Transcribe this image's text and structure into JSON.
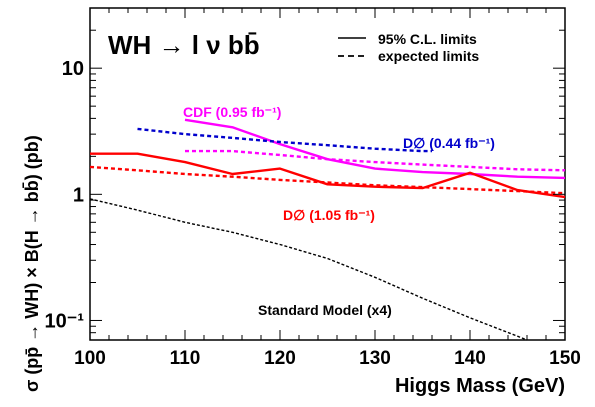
{
  "chart_data": {
    "type": "line",
    "title": "WH → l ν bb̄",
    "xlabel": "Higgs Mass (GeV)",
    "ylabel": "σ (pp̄ → WH) × B(H → bb̄) (pb)",
    "xlim": [
      100,
      150
    ],
    "ylim": [
      0.07,
      30
    ],
    "yscale": "log",
    "x_ticks": [
      "100",
      "110",
      "120",
      "130",
      "140",
      "150"
    ],
    "y_ticks": [
      {
        "value": 0.1,
        "label": "10⁻¹"
      },
      {
        "value": 1,
        "label": "1"
      },
      {
        "value": 10,
        "label": "10"
      }
    ],
    "legend": {
      "position": "top-right",
      "items": [
        {
          "label": "95% C.L. limits",
          "dash": "solid"
        },
        {
          "label": "expected limits",
          "dash": "dashed"
        }
      ]
    },
    "series": [
      {
        "name": "CDF (0.95 fb⁻¹)",
        "color": "#ff00ff",
        "dash": "solid",
        "x": [
          110,
          115,
          120,
          125,
          130,
          135,
          140,
          145,
          150
        ],
        "y": [
          3.9,
          3.4,
          2.5,
          1.9,
          1.6,
          1.5,
          1.45,
          1.38,
          1.35
        ]
      },
      {
        "color": "#ff00ff",
        "dash": "dotted",
        "x": [
          110,
          115,
          120,
          125,
          130,
          135,
          140,
          145,
          150
        ],
        "y": [
          2.2,
          2.2,
          2.05,
          1.9,
          1.8,
          1.72,
          1.65,
          1.58,
          1.55
        ]
      },
      {
        "name": "D∅ (0.44 fb⁻¹)",
        "color": "#0000cc",
        "dash": "dotted",
        "x": [
          105,
          110,
          115,
          120,
          125,
          130,
          135,
          136
        ],
        "y": [
          3.3,
          3.0,
          2.8,
          2.6,
          2.45,
          2.3,
          2.2,
          2.2
        ]
      },
      {
        "name": "D∅ (1.05 fb⁻¹)",
        "color": "#ff0000",
        "dash": "solid",
        "x": [
          100,
          105,
          110,
          115,
          120,
          125,
          130,
          135,
          140,
          145,
          150
        ],
        "y": [
          2.1,
          2.1,
          1.8,
          1.45,
          1.6,
          1.2,
          1.15,
          1.12,
          1.48,
          1.08,
          0.95
        ]
      },
      {
        "color": "#ff0000",
        "dash": "dotted",
        "x": [
          100,
          105,
          110,
          115,
          120,
          125,
          130,
          135,
          140,
          145,
          150
        ],
        "y": [
          1.65,
          1.55,
          1.45,
          1.38,
          1.3,
          1.24,
          1.18,
          1.14,
          1.1,
          1.06,
          1.02
        ]
      },
      {
        "name": "Standard Model (x4)",
        "color": "#000000",
        "dash": "dotted",
        "x": [
          100,
          105,
          110,
          115,
          120,
          125,
          130,
          135,
          140,
          145,
          146
        ],
        "y": [
          0.92,
          0.75,
          0.6,
          0.5,
          0.4,
          0.31,
          0.22,
          0.15,
          0.105,
          0.075,
          0.07
        ]
      }
    ]
  }
}
